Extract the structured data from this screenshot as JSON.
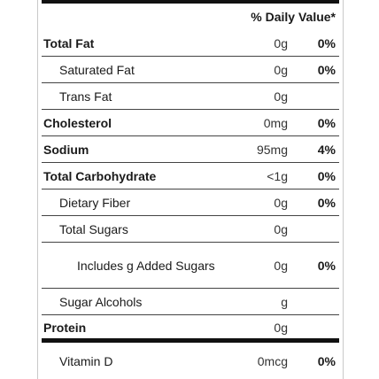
{
  "header": {
    "daily_value": "% Daily Value*"
  },
  "rows": [
    {
      "name": "Total Fat",
      "amount": "0g",
      "dv": "0%"
    },
    {
      "name": "Saturated Fat",
      "amount": "0g",
      "dv": "0%"
    },
    {
      "name": "Trans Fat",
      "amount": "0g",
      "dv": ""
    },
    {
      "name": "Cholesterol",
      "amount": "0mg",
      "dv": "0%"
    },
    {
      "name": "Sodium",
      "amount": "95mg",
      "dv": "4%"
    },
    {
      "name": "Total Carbohydrate",
      "amount": "<1g",
      "dv": "0%"
    },
    {
      "name": "Dietary Fiber",
      "amount": "0g",
      "dv": "0%"
    },
    {
      "name": "Total Sugars",
      "amount": "0g",
      "dv": ""
    },
    {
      "name": "Includes g Added Sugars",
      "amount": "0g",
      "dv": "0%"
    },
    {
      "name": "Sugar Alcohols",
      "amount": "g",
      "dv": ""
    },
    {
      "name": "Protein",
      "amount": "0g",
      "dv": ""
    },
    {
      "name": "Vitamin D",
      "amount": "0mcg",
      "dv": "0%"
    }
  ]
}
